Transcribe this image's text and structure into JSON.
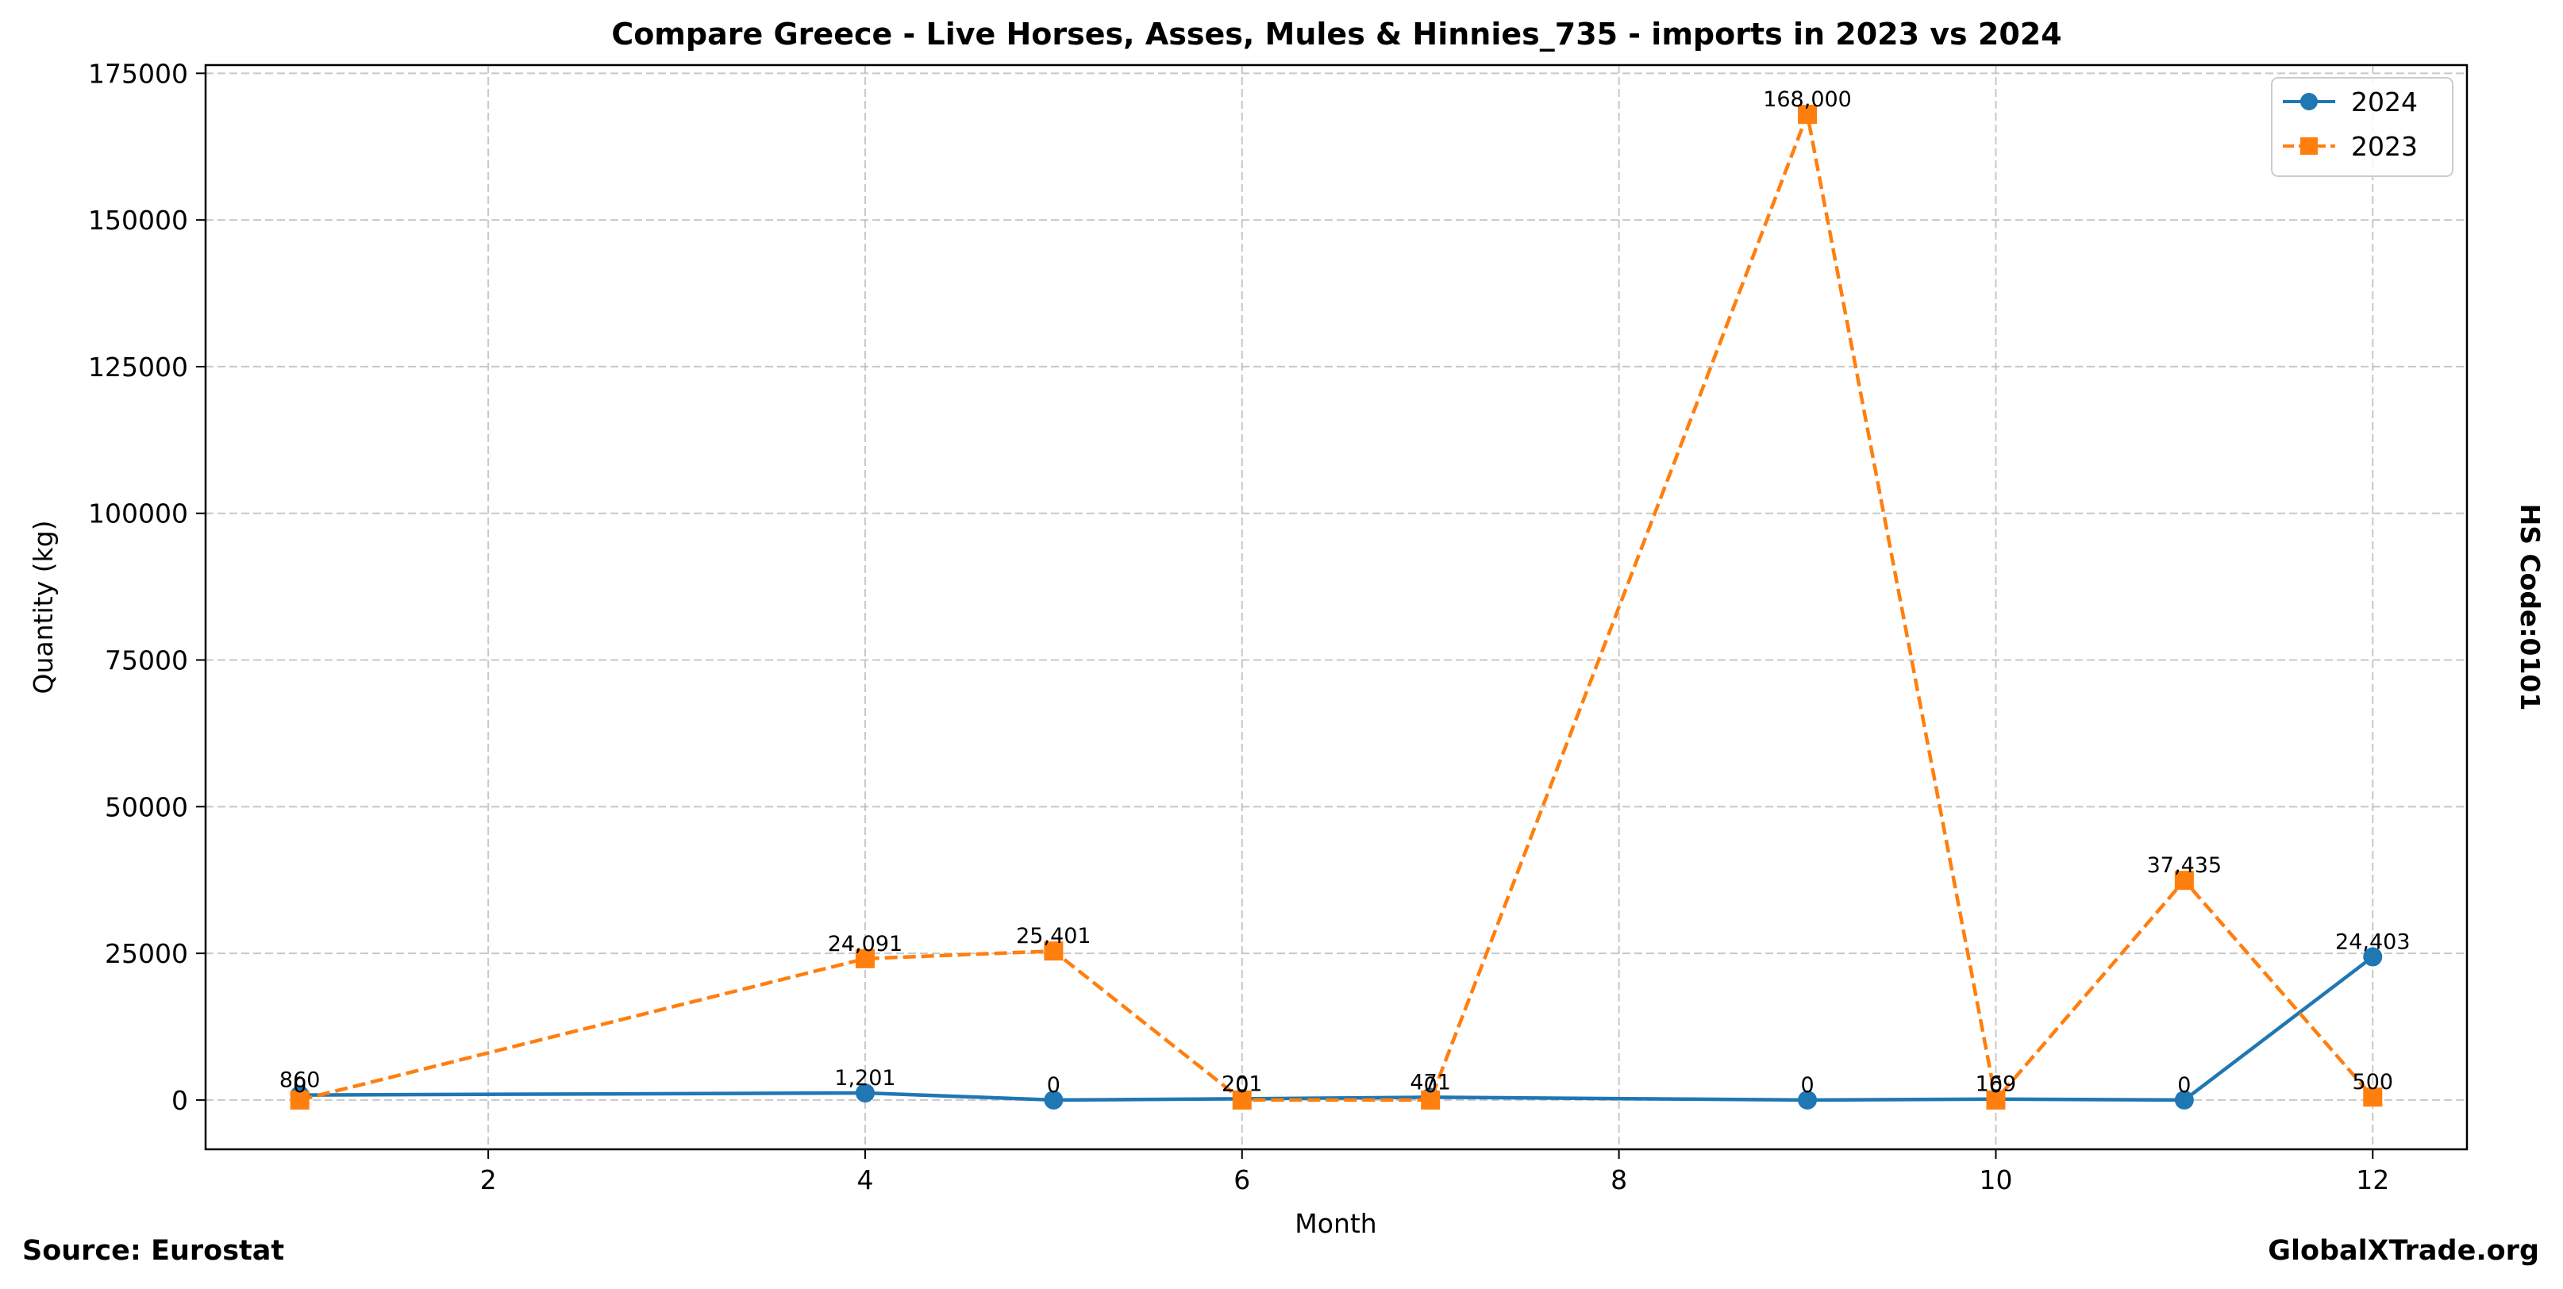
{
  "chart_data": {
    "type": "line",
    "title": "Compare Greece - Live Horses, Asses, Mules & Hinnies_735 - imports in 2023 vs 2024",
    "xlabel": "Month",
    "ylabel": "Quantity (kg)",
    "xlim": [
      0.5,
      12.5
    ],
    "ylim": [
      -8400,
      176400
    ],
    "xticks": [
      2,
      4,
      6,
      8,
      10,
      12
    ],
    "yticks": [
      0,
      25000,
      50000,
      75000,
      100000,
      125000,
      150000,
      175000
    ],
    "grid": true,
    "legend_position": "top-right",
    "series": [
      {
        "name": "2024",
        "color": "#1f77b4",
        "marker": "circle",
        "line_style": "solid",
        "points": [
          {
            "x": 1,
            "y": 860,
            "label": "860"
          },
          {
            "x": 4,
            "y": 1201,
            "label": "1,201"
          },
          {
            "x": 5,
            "y": 0,
            "label": "0"
          },
          {
            "x": 6,
            "y": 201,
            "label": "201"
          },
          {
            "x": 7,
            "y": 471,
            "label": "471"
          },
          {
            "x": 9,
            "y": 0,
            "label": "0"
          },
          {
            "x": 10,
            "y": 169,
            "label": "169"
          },
          {
            "x": 11,
            "y": 0,
            "label": "0"
          },
          {
            "x": 12,
            "y": 24403,
            "label": "24,403"
          }
        ]
      },
      {
        "name": "2023",
        "color": "#ff7f0e",
        "marker": "square",
        "line_style": "dashed",
        "points": [
          {
            "x": 1,
            "y": 0,
            "label": "0"
          },
          {
            "x": 4,
            "y": 24091,
            "label": "24,091"
          },
          {
            "x": 5,
            "y": 25401,
            "label": "25,401"
          },
          {
            "x": 6,
            "y": 0,
            "label": "0"
          },
          {
            "x": 7,
            "y": 0,
            "label": "0"
          },
          {
            "x": 9,
            "y": 168000,
            "label": "168,000"
          },
          {
            "x": 10,
            "y": 0,
            "label": "0"
          },
          {
            "x": 11,
            "y": 37435,
            "label": "37,435"
          },
          {
            "x": 12,
            "y": 500,
            "label": "500"
          }
        ]
      }
    ],
    "side_label": "HS Code:0101"
  },
  "footer": {
    "source": "Source: Eurostat",
    "brand": "GlobalXTrade.org"
  }
}
